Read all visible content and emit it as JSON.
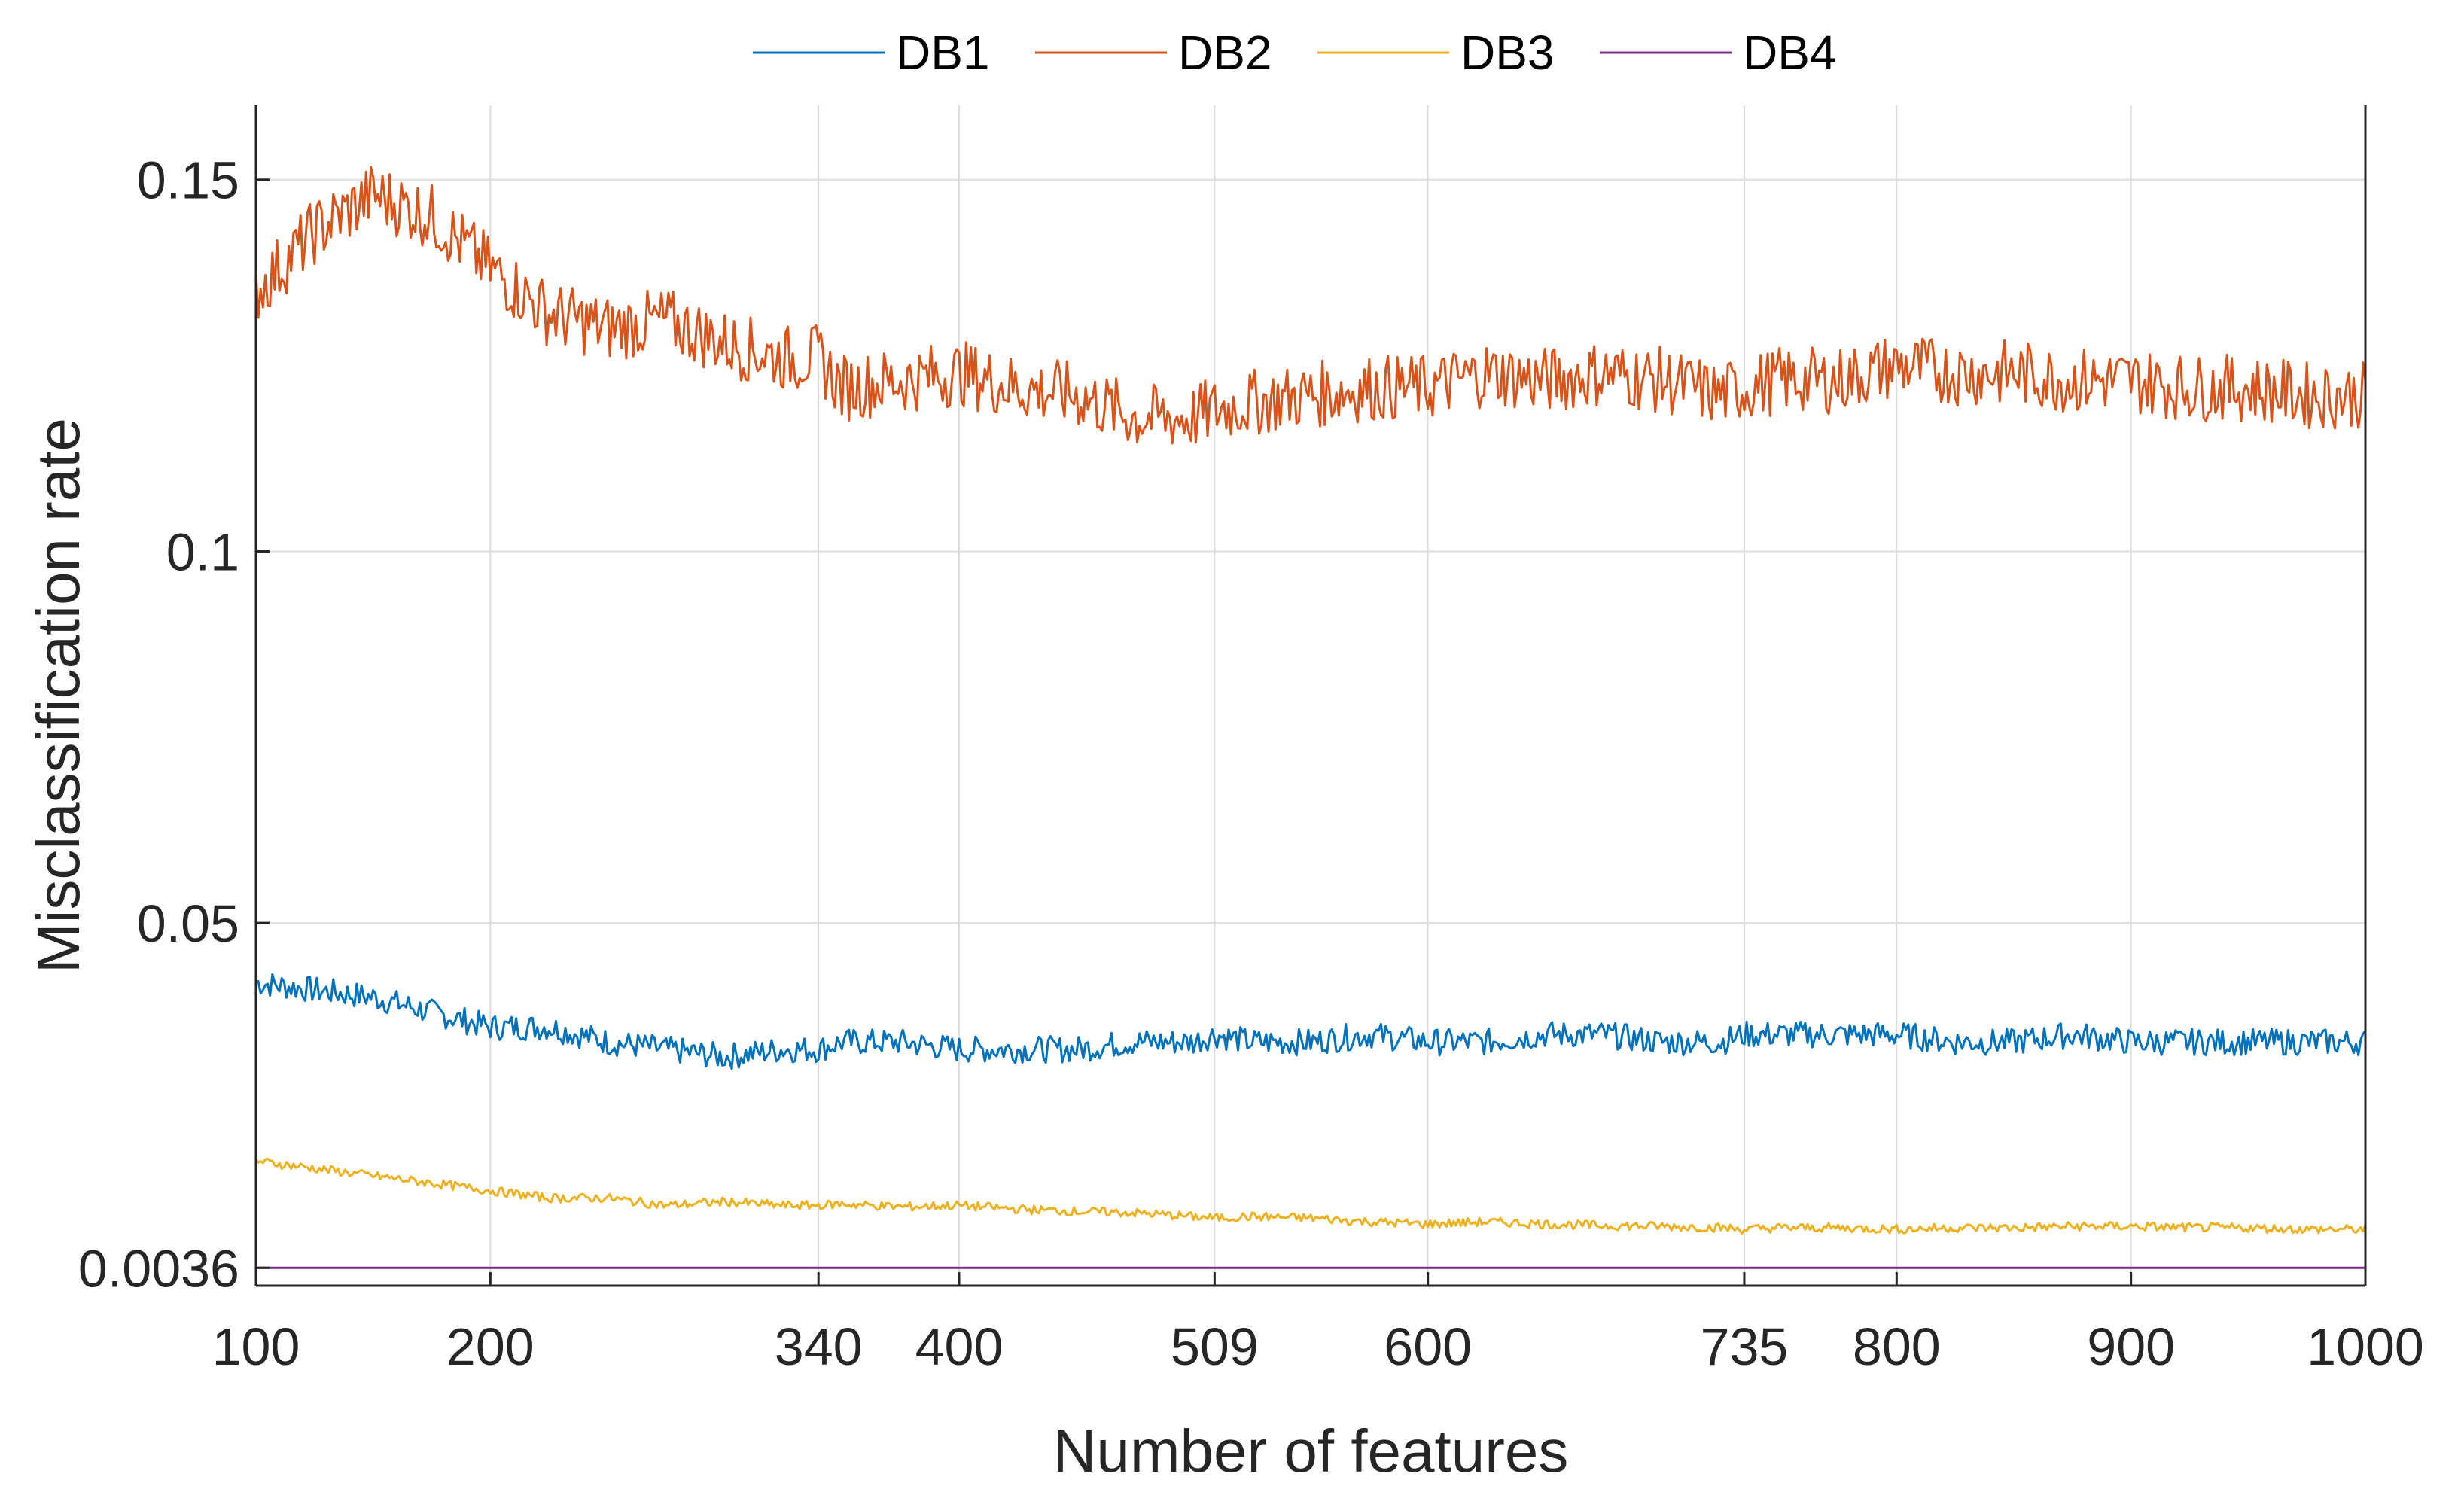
{
  "chart_data": {
    "type": "line",
    "title": "",
    "xlabel": "Number of features",
    "ylabel": "Misclassification rate",
    "xlim": [
      100,
      1000
    ],
    "ylim": [
      0.0012,
      0.16
    ],
    "xticks": [
      100,
      200,
      340,
      400,
      509,
      600,
      735,
      800,
      900,
      1000
    ],
    "xtick_labels": [
      "100",
      "200",
      "340",
      "400",
      "509",
      "600",
      "735",
      "800",
      "900",
      "1000"
    ],
    "yticks": [
      0.0036,
      0.05,
      0.1,
      0.15
    ],
    "ytick_labels": [
      "0.0036",
      "0.05",
      "0.1",
      "0.15"
    ],
    "grid": true,
    "legend_position": "top, horizontal",
    "x": [
      100,
      125,
      150,
      175,
      200,
      225,
      250,
      275,
      300,
      325,
      340,
      350,
      375,
      400,
      425,
      450,
      475,
      500,
      509,
      525,
      550,
      575,
      600,
      625,
      650,
      675,
      700,
      725,
      735,
      750,
      775,
      800,
      825,
      850,
      875,
      900,
      925,
      950,
      975,
      1000
    ],
    "series": [
      {
        "name": "DB1",
        "color": "#0072BD",
        "values": [
          0.042,
          0.041,
          0.04,
          0.038,
          0.036,
          0.036,
          0.034,
          0.033,
          0.032,
          0.033,
          0.033,
          0.034,
          0.034,
          0.033,
          0.033,
          0.033,
          0.034,
          0.034,
          0.035,
          0.034,
          0.034,
          0.035,
          0.034,
          0.034,
          0.035,
          0.035,
          0.034,
          0.034,
          0.035,
          0.035,
          0.035,
          0.035,
          0.034,
          0.034,
          0.035,
          0.034,
          0.034,
          0.034,
          0.034,
          0.034
        ]
      },
      {
        "name": "DB2",
        "color": "#D95319",
        "values": [
          0.135,
          0.143,
          0.148,
          0.145,
          0.138,
          0.132,
          0.13,
          0.131,
          0.128,
          0.126,
          0.126,
          0.122,
          0.123,
          0.124,
          0.122,
          0.121,
          0.118,
          0.118,
          0.119,
          0.12,
          0.121,
          0.122,
          0.122,
          0.124,
          0.123,
          0.124,
          0.123,
          0.121,
          0.122,
          0.123,
          0.123,
          0.125,
          0.124,
          0.124,
          0.123,
          0.123,
          0.122,
          0.122,
          0.121,
          0.121
        ]
      },
      {
        "name": "DB3",
        "color": "#EDB120",
        "values": [
          0.018,
          0.017,
          0.016,
          0.015,
          0.014,
          0.013,
          0.013,
          0.012,
          0.0125,
          0.012,
          0.012,
          0.0122,
          0.0118,
          0.012,
          0.0115,
          0.0112,
          0.011,
          0.0105,
          0.0103,
          0.0105,
          0.0103,
          0.0098,
          0.0095,
          0.0098,
          0.0095,
          0.0093,
          0.0092,
          0.009,
          0.0088,
          0.009,
          0.009,
          0.0088,
          0.009,
          0.009,
          0.0092,
          0.0092,
          0.009,
          0.009,
          0.0088,
          0.0088
        ]
      },
      {
        "name": "DB4",
        "color": "#7E2F8E",
        "values": [
          0.0036,
          0.0036,
          0.0036,
          0.0036,
          0.0036,
          0.0036,
          0.0036,
          0.0036,
          0.0036,
          0.0036,
          0.0036,
          0.0036,
          0.0036,
          0.0036,
          0.0036,
          0.0036,
          0.0036,
          0.0036,
          0.0036,
          0.0036,
          0.0036,
          0.0036,
          0.0036,
          0.0036,
          0.0036,
          0.0036,
          0.0036,
          0.0036,
          0.0036,
          0.0036,
          0.0036,
          0.0036,
          0.0036,
          0.0036,
          0.0036,
          0.0036,
          0.0036,
          0.0036,
          0.0036,
          0.0036
        ]
      }
    ]
  }
}
